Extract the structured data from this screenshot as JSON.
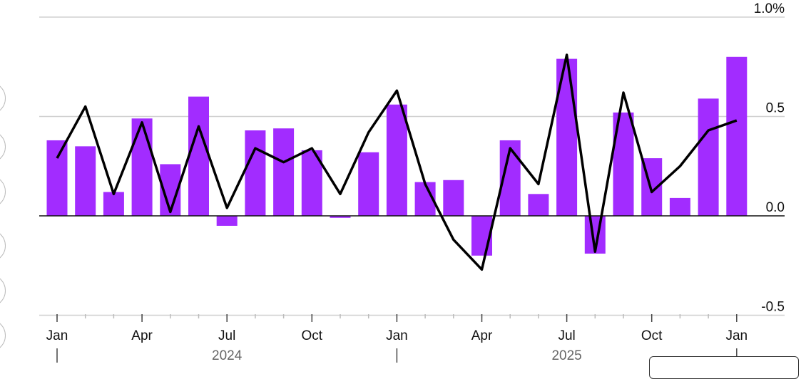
{
  "chart_data": {
    "type": "bar+line",
    "y_unit_label": "1.0%",
    "ylim": [
      -0.5,
      1.0
    ],
    "yticks": [
      1.0,
      0.5,
      0.0,
      -0.5
    ],
    "ytick_labels": [
      "1.0%",
      "0.5",
      "0.0",
      "-0.5"
    ],
    "grid": true,
    "months": [
      "Jan 2024",
      "Feb 2024",
      "Mar 2024",
      "Apr 2024",
      "May 2024",
      "Jun 2024",
      "Jul 2024",
      "Aug 2024",
      "Sep 2024",
      "Oct 2024",
      "Nov 2024",
      "Dec 2024",
      "Jan 2025",
      "Feb 2025",
      "Mar 2025",
      "Apr 2025",
      "May 2025",
      "Jun 2025",
      "Jul 2025",
      "Aug 2025",
      "Sep 2025",
      "Oct 2025",
      "Nov 2025",
      "Dec 2025",
      "Jan 2026"
    ],
    "xtick_labels": [
      {
        "index": 0,
        "label": "Jan"
      },
      {
        "index": 3,
        "label": "Apr"
      },
      {
        "index": 6,
        "label": "Jul"
      },
      {
        "index": 9,
        "label": "Oct"
      },
      {
        "index": 12,
        "label": "Jan"
      },
      {
        "index": 15,
        "label": "Apr"
      },
      {
        "index": 18,
        "label": "Jul"
      },
      {
        "index": 21,
        "label": "Oct"
      },
      {
        "index": 24,
        "label": "Jan"
      }
    ],
    "year_labels": [
      {
        "index": 6,
        "label": "2024"
      },
      {
        "index": 18,
        "label": "2025"
      }
    ],
    "series": [
      {
        "type": "bar",
        "color": "#a22cff",
        "values": [
          0.38,
          0.35,
          0.12,
          0.49,
          0.26,
          0.6,
          -0.05,
          0.43,
          0.44,
          0.33,
          -0.01,
          0.32,
          0.56,
          0.17,
          0.18,
          -0.2,
          0.38,
          0.11,
          0.79,
          -0.19,
          0.52,
          0.29,
          0.09,
          0.59,
          0.8
        ]
      },
      {
        "type": "line",
        "color": "#000000",
        "values": [
          0.29,
          0.55,
          0.11,
          0.47,
          0.02,
          0.45,
          0.04,
          0.34,
          0.27,
          0.34,
          0.11,
          0.42,
          0.63,
          0.16,
          -0.12,
          -0.27,
          0.34,
          0.16,
          0.81,
          -0.18,
          0.62,
          0.12,
          0.25,
          0.43,
          0.48
        ]
      }
    ]
  }
}
